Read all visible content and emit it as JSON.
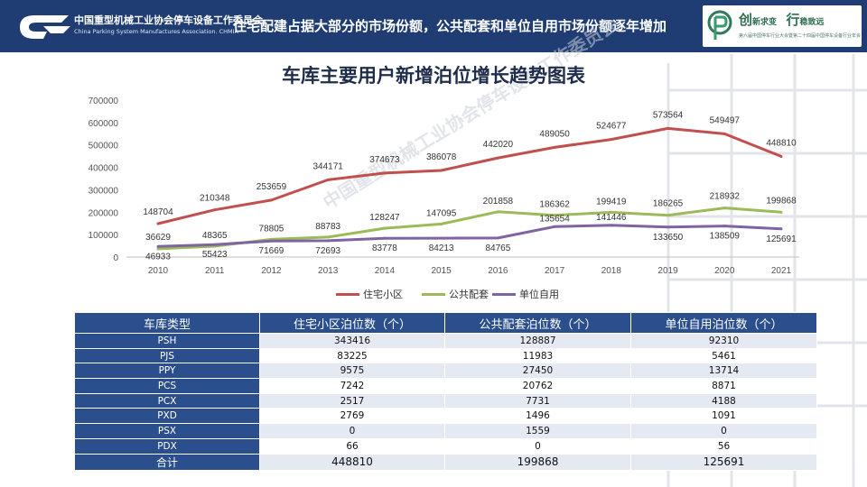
{
  "header": {
    "org_name_cn": "中国重型机械工业协会停车设备工作委员会",
    "org_name_en": "China Parking System Manufactures Association. CHMIA",
    "title": "住宅配建占据大部分的市场份额，公共配套和单位自用市场份额逐年增加",
    "slogan_1": "创",
    "slogan_2": "新求变",
    "slogan_3": "行",
    "slogan_4": "稳致远",
    "slogan_sub": "第六届中国停车行业大会暨第二十四届中国停车设备行业年会"
  },
  "watermark": "中国重型机械工业协会停车设备工作委员会",
  "colors": {
    "header_bg": "#1f3d73",
    "residential": "#c0504d",
    "public": "#9bbb59",
    "unit": "#8064a2",
    "table_header": "#2b4f8c"
  },
  "chart_data": {
    "type": "line",
    "title": "车库主要用户新增泊位增长趋势图表",
    "x": [
      "2010",
      "2011",
      "2012",
      "2013",
      "2014",
      "2015",
      "2016",
      "2017",
      "2018",
      "2019",
      "2020",
      "2021"
    ],
    "ylim": [
      0,
      700000
    ],
    "yticks": [
      "0",
      "100000",
      "200000",
      "300000",
      "400000",
      "500000",
      "600000",
      "700000"
    ],
    "grid": false,
    "legend_position": "bottom",
    "series": [
      {
        "name": "住宅小区",
        "color": "#c0504d",
        "values": [
          148704,
          210348,
          253659,
          344171,
          374673,
          386078,
          442020,
          489050,
          524677,
          573564,
          549497,
          448810
        ]
      },
      {
        "name": "公共配套",
        "color": "#9bbb59",
        "values": [
          36629,
          48365,
          78805,
          88783,
          128247,
          147095,
          201858,
          186362,
          199419,
          186265,
          218932,
          199868
        ]
      },
      {
        "name": "单位自用",
        "color": "#8064a2",
        "values": [
          46933,
          55423,
          71669,
          72693,
          83778,
          84213,
          84765,
          135654,
          141446,
          133650,
          138509,
          125691
        ]
      }
    ]
  },
  "table": {
    "headers": [
      "车库类型",
      "住宅小区泊位数（个）",
      "公共配套泊位数（个）",
      "单位自用泊位数（个）"
    ],
    "rows": [
      [
        "PSH",
        "343416",
        "128887",
        "92310"
      ],
      [
        "PJS",
        "83225",
        "11983",
        "5461"
      ],
      [
        "PPY",
        "9575",
        "27450",
        "13714"
      ],
      [
        "PCS",
        "7242",
        "20762",
        "8871"
      ],
      [
        "PCX",
        "2517",
        "7731",
        "4188"
      ],
      [
        "PXD",
        "2769",
        "1496",
        "1091"
      ],
      [
        "PSX",
        "0",
        "1559",
        "0"
      ],
      [
        "PDX",
        "66",
        "0",
        "56"
      ]
    ],
    "total": [
      "合计",
      "448810",
      "199868",
      "125691"
    ]
  }
}
